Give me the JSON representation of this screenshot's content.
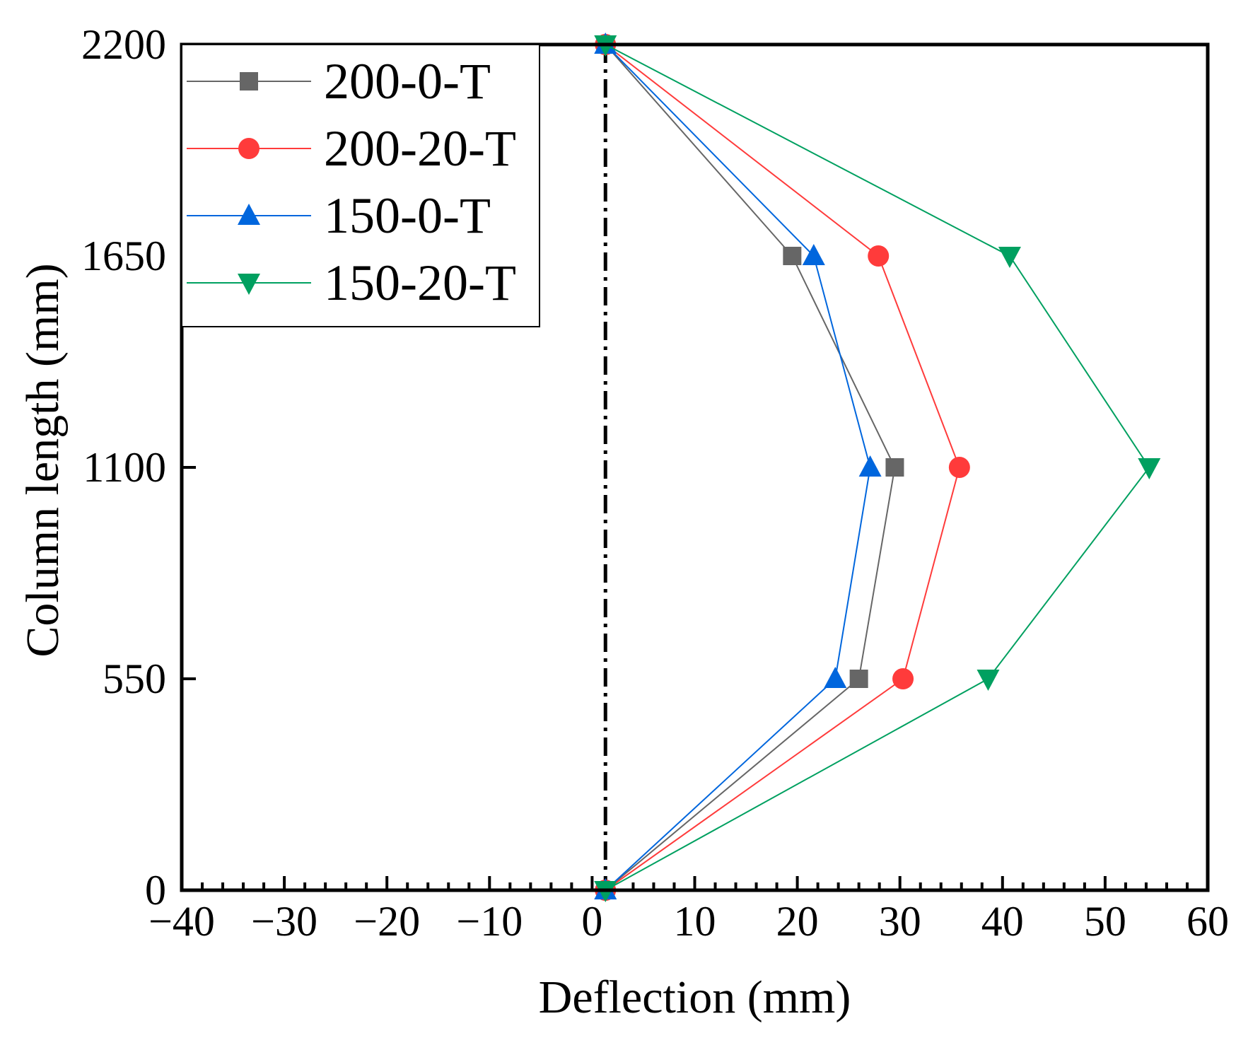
{
  "chart_data": {
    "type": "line",
    "title": "",
    "xlabel": "Deflection (mm)",
    "ylabel": "Column length (mm)",
    "xlim": [
      -40,
      60
    ],
    "ylim": [
      0,
      2200
    ],
    "xticks": [
      -40,
      -30,
      -20,
      -10,
      0,
      10,
      20,
      30,
      40,
      50,
      60
    ],
    "yticks": [
      0,
      550,
      1100,
      1650,
      2200
    ],
    "xtick_labels": [
      "−40",
      "−30",
      "−20",
      "−10",
      "0",
      "10",
      "20",
      "30",
      "40",
      "50",
      "60"
    ],
    "ytick_labels": [
      "0",
      "550",
      "1100",
      "1650",
      "2200"
    ],
    "grid": false,
    "legend_position": "top-left",
    "reference_line": {
      "x": 1.3,
      "style": "dash-dot"
    },
    "series": [
      {
        "name": "200-0-T",
        "color": "#666666",
        "marker": "square",
        "points": [
          [
            1.3,
            0
          ],
          [
            26,
            550
          ],
          [
            29.5,
            1100
          ],
          [
            19.5,
            1650
          ],
          [
            1.3,
            2200
          ]
        ]
      },
      {
        "name": "200-20-T",
        "color": "#ff3b3b",
        "marker": "circle",
        "points": [
          [
            1.3,
            0
          ],
          [
            30.3,
            550
          ],
          [
            35.8,
            1100
          ],
          [
            27.9,
            1650
          ],
          [
            1.3,
            2200
          ]
        ]
      },
      {
        "name": "150-0-T",
        "color": "#0066dd",
        "marker": "triangle-up",
        "points": [
          [
            1.3,
            0
          ],
          [
            23.7,
            550
          ],
          [
            27.1,
            1100
          ],
          [
            21.6,
            1650
          ],
          [
            1.3,
            2200
          ]
        ]
      },
      {
        "name": "150-20-T",
        "color": "#00a060",
        "marker": "triangle-down",
        "points": [
          [
            1.3,
            0
          ],
          [
            38.6,
            550
          ],
          [
            54.3,
            1100
          ],
          [
            40.7,
            1650
          ],
          [
            1.3,
            2200
          ]
        ]
      }
    ]
  }
}
